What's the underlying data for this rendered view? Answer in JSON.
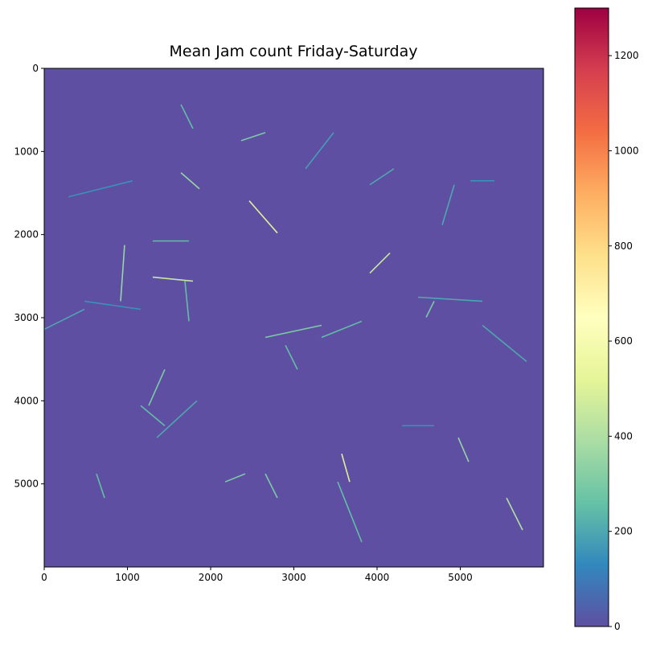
{
  "chart_data": {
    "type": "heatmap",
    "title": "Mean Jam count Friday-Saturday",
    "xlim": [
      0,
      6000
    ],
    "ylim": [
      6000,
      0
    ],
    "xticks": [
      0,
      1000,
      2000,
      3000,
      4000,
      5000
    ],
    "yticks": [
      0,
      1000,
      2000,
      3000,
      4000,
      5000
    ],
    "clim": [
      0,
      1300
    ],
    "cticks": [
      0,
      200,
      400,
      600,
      800,
      1000,
      1200
    ],
    "colormap": [
      "#5e4fa2",
      "#3288bd",
      "#66c2a5",
      "#abdda4",
      "#e6f598",
      "#ffffbf",
      "#fee08b",
      "#fdae61",
      "#f46d43",
      "#d53e4f",
      "#9e0142"
    ],
    "background_value": 0,
    "segments": [
      {
        "x": [
          2464,
          2802
        ],
        "y": [
          1594,
          1981
        ],
        "value": 500
      },
      {
        "x": [
          3913,
          4155
        ],
        "y": [
          2464,
          2222
        ],
        "value": 450
      },
      {
        "x": [
          966,
          918
        ],
        "y": [
          2126,
          2802
        ],
        "value": 350
      },
      {
        "x": [
          1304,
          1787
        ],
        "y": [
          2512,
          2560
        ],
        "value": 450
      },
      {
        "x": [
          3575,
          3671
        ],
        "y": [
          4638,
          4976
        ],
        "value": 500
      },
      {
        "x": [
          5556,
          5749
        ],
        "y": [
          5169,
          5556
        ],
        "value": 400
      },
      {
        "x": [
          4976,
          5101
        ],
        "y": [
          4444,
          4734
        ],
        "value": 350
      },
      {
        "x": [
          1643,
          1865
        ],
        "y": [
          1256,
          1449
        ],
        "value": 350
      },
      {
        "x": [
          2367,
          2657
        ],
        "y": [
          870,
          773
        ],
        "value": 300
      },
      {
        "x": [
          2657,
          3333
        ],
        "y": [
          3237,
          3092
        ],
        "value": 300
      },
      {
        "x": [
          1304,
          1739
        ],
        "y": [
          2077,
          2077
        ],
        "value": 250
      },
      {
        "x": [
          1449,
          1256
        ],
        "y": [
          3623,
          4058
        ],
        "value": 300
      },
      {
        "x": [
          4686,
          4590
        ],
        "y": [
          2802,
          2995
        ],
        "value": 300
      },
      {
        "x": [
          4493,
          5266
        ],
        "y": [
          2754,
          2802
        ],
        "value": 200
      },
      {
        "x": [
          5266,
          5797
        ],
        "y": [
          3092,
          3527
        ],
        "value": 200
      },
      {
        "x": [
          2657,
          2802
        ],
        "y": [
          4879,
          5169
        ],
        "value": 300
      },
      {
        "x": [
          628,
          725
        ],
        "y": [
          4879,
          5169
        ],
        "value": 250
      },
      {
        "x": [
          1643,
          1787
        ],
        "y": [
          435,
          725
        ],
        "value": 250
      },
      {
        "x": [
          3333,
          3816
        ],
        "y": [
          3237,
          3043
        ],
        "value": 250
      },
      {
        "x": [
          3913,
          4203
        ],
        "y": [
          1401,
          1208
        ],
        "value": 200
      },
      {
        "x": [
          4928,
          4783
        ],
        "y": [
          1401,
          1884
        ],
        "value": 200
      },
      {
        "x": [
          1159,
          1449
        ],
        "y": [
          4058,
          4300
        ],
        "value": 250
      },
      {
        "x": [
          2174,
          2415
        ],
        "y": [
          4976,
          4879
        ],
        "value": 300
      },
      {
        "x": [
          1691,
          1739
        ],
        "y": [
          2560,
          3043
        ],
        "value": 250
      },
      {
        "x": [
          3527,
          3816
        ],
        "y": [
          4976,
          5700
        ],
        "value": 250
      },
      {
        "x": [
          1353,
          1836
        ],
        "y": [
          4444,
          4000
        ],
        "value": 200
      },
      {
        "x": [
          2899,
          3043
        ],
        "y": [
          3333,
          3623
        ],
        "value": 250
      },
      {
        "x": [
          290,
          1062
        ],
        "y": [
          1546,
          1353
        ],
        "value": 150
      },
      {
        "x": [
          5121,
          5411
        ],
        "y": [
          1353,
          1353
        ],
        "value": 150
      },
      {
        "x": [
          4300,
          4686
        ],
        "y": [
          4300,
          4300
        ],
        "value": 150
      },
      {
        "x": [
          3140,
          3478
        ],
        "y": [
          1208,
          773
        ],
        "value": 180
      },
      {
        "x": [
          0,
          483
        ],
        "y": [
          3140,
          2899
        ],
        "value": 200
      },
      {
        "x": [
          483,
          1159
        ],
        "y": [
          2802,
          2899
        ],
        "value": 150
      }
    ]
  }
}
